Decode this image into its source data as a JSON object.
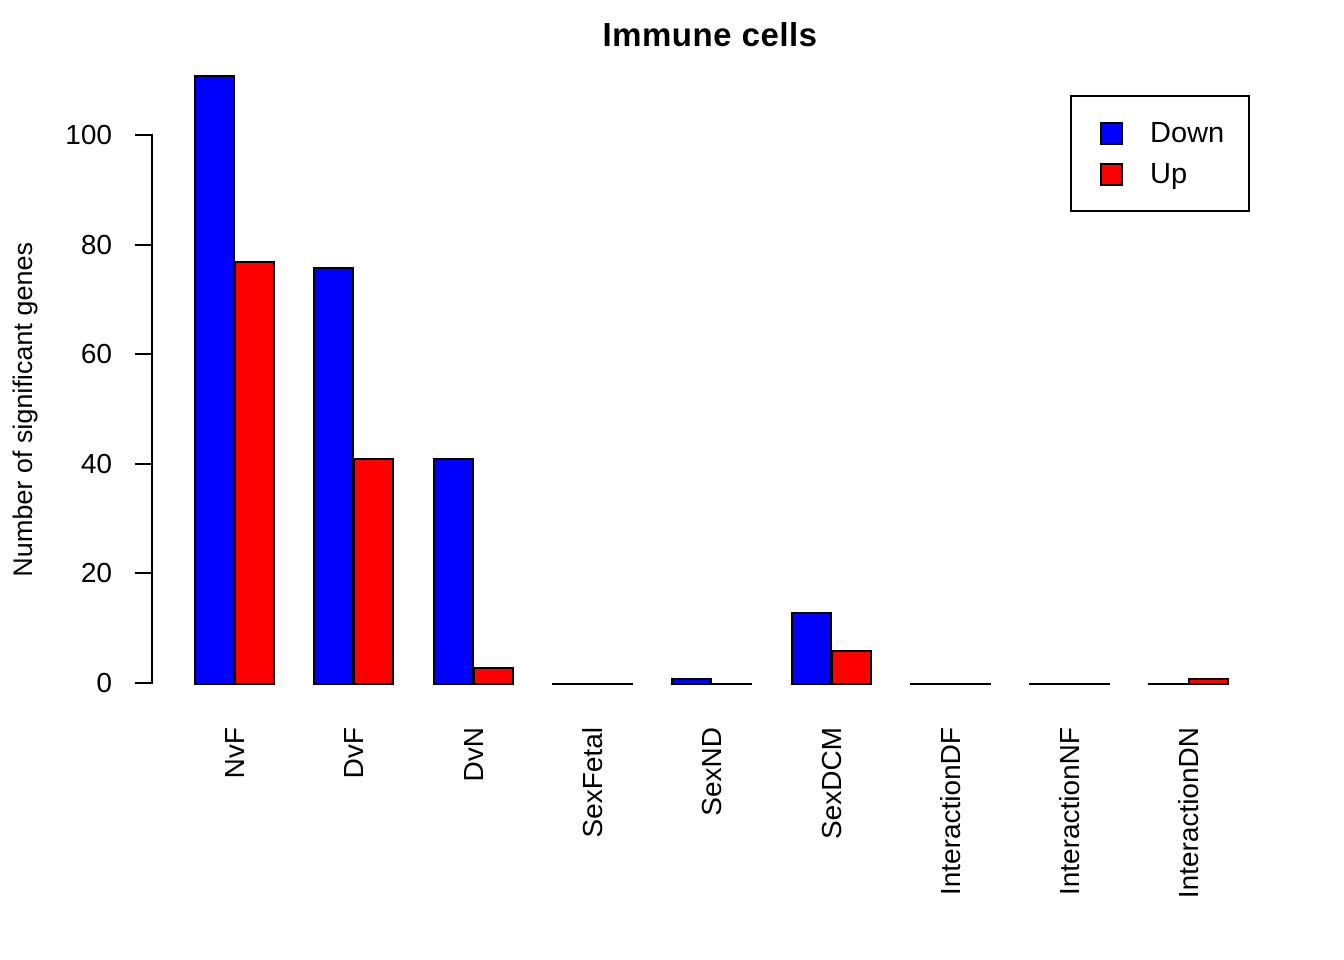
{
  "title": "Immune cells",
  "y_axis_title": "Number of significant genes",
  "legend": {
    "position": "topright",
    "items": [
      {
        "label": "Down",
        "color": "#0000ff"
      },
      {
        "label": "Up",
        "color": "#ff0000"
      }
    ]
  },
  "chart_data": {
    "type": "bar",
    "title": "Immune cells",
    "xlabel": "",
    "ylabel": "Number of significant genes",
    "categories": [
      "NvF",
      "DvF",
      "DvN",
      "SexFetal",
      "SexND",
      "SexDCM",
      "InteractionDF",
      "InteractionNF",
      "InteractionDN"
    ],
    "series": [
      {
        "name": "Down",
        "color": "#0000ff",
        "values": [
          111,
          76,
          41,
          0,
          1,
          13,
          0,
          0,
          0
        ]
      },
      {
        "name": "Up",
        "color": "#ff0000",
        "values": [
          77,
          41,
          3,
          0,
          0,
          6,
          0,
          0,
          1
        ]
      }
    ],
    "ylim": [
      0,
      112
    ],
    "yticks": [
      0,
      20,
      40,
      60,
      80,
      100
    ],
    "grid": false,
    "legend_position": "topright",
    "bar_border_color": "#000000",
    "background_color": "#ffffff"
  }
}
